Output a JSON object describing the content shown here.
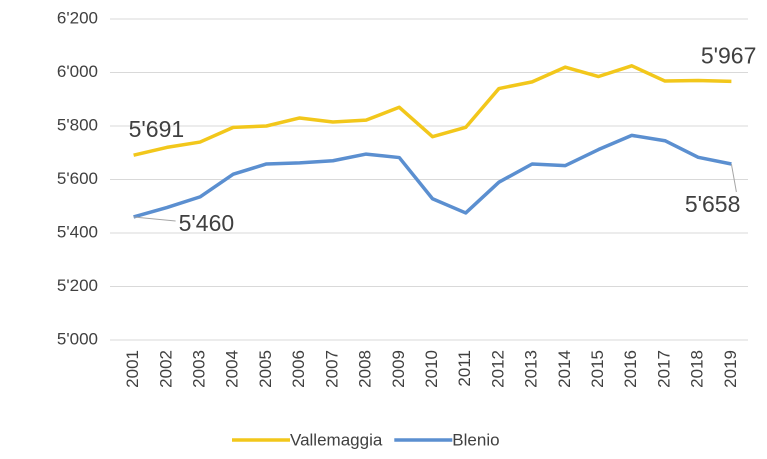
{
  "chart_data": {
    "type": "line",
    "categories": [
      "2001",
      "2002",
      "2003",
      "2004",
      "2005",
      "2006",
      "2007",
      "2008",
      "2009",
      "2010",
      "2011",
      "2012",
      "2013",
      "2014",
      "2015",
      "2016",
      "2017",
      "2018",
      "2019"
    ],
    "series": [
      {
        "name": "Vallemaggia",
        "color": "#f2c71b",
        "values": [
          5691,
          5720,
          5740,
          5795,
          5800,
          5830,
          5815,
          5822,
          5870,
          5760,
          5795,
          5940,
          5965,
          6020,
          5985,
          6025,
          5968,
          5970,
          5967
        ],
        "value_labels": [
          "5'691",
          null,
          null,
          null,
          null,
          null,
          null,
          null,
          null,
          null,
          null,
          null,
          null,
          null,
          null,
          null,
          null,
          null,
          "5'967"
        ]
      },
      {
        "name": "Blenio",
        "color": "#5b8fd0",
        "values": [
          5460,
          5495,
          5535,
          5620,
          5658,
          5662,
          5670,
          5695,
          5682,
          5528,
          5475,
          5590,
          5658,
          5652,
          5712,
          5765,
          5745,
          5683,
          5658
        ],
        "value_labels": [
          "5'460",
          null,
          null,
          null,
          null,
          null,
          null,
          null,
          null,
          null,
          null,
          null,
          null,
          null,
          null,
          null,
          null,
          null,
          "5'658"
        ]
      }
    ],
    "ylim": [
      5000,
      6200
    ],
    "yticks": [
      {
        "value": 5000,
        "label": "5'000"
      },
      {
        "value": 5200,
        "label": "5'200"
      },
      {
        "value": 5400,
        "label": "5'400"
      },
      {
        "value": 5600,
        "label": "5'600"
      },
      {
        "value": 5800,
        "label": "5'800"
      },
      {
        "value": 6000,
        "label": "6'000"
      },
      {
        "value": 6200,
        "label": "6'200"
      }
    ],
    "grid": true,
    "legend": "bottom"
  }
}
